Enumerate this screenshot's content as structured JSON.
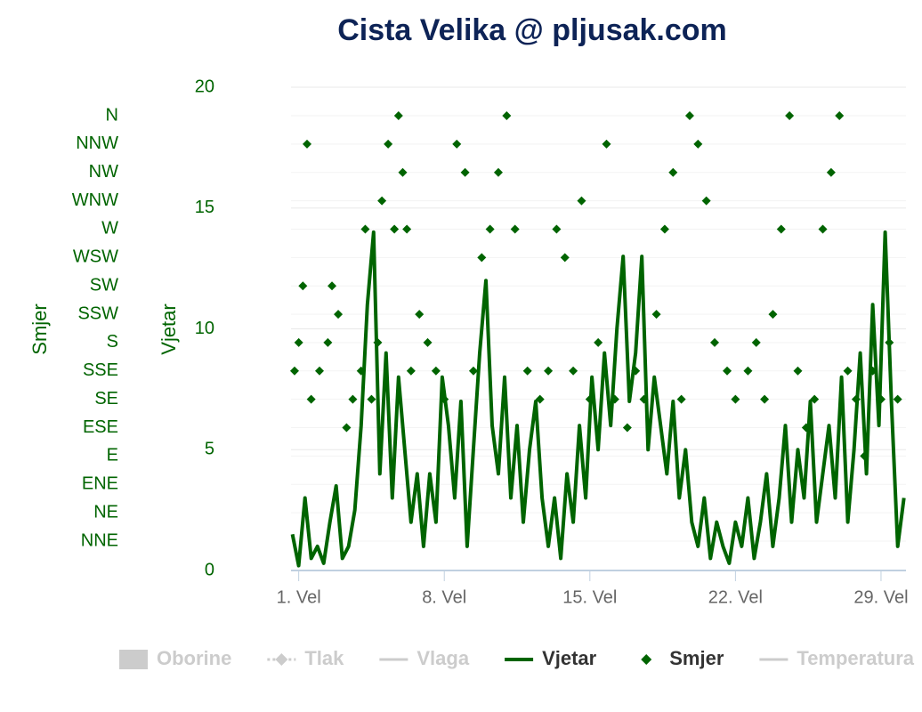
{
  "chart_data": {
    "type": "combo",
    "title": "Cista Velika @ pljusak.com",
    "y_label": "Vjetar",
    "y2_label": "Smjer",
    "xlim": [
      0.63,
      30.2
    ],
    "xticks": [
      {
        "value": 1,
        "label": "1. Vel"
      },
      {
        "value": 8,
        "label": "8. Vel"
      },
      {
        "value": 15,
        "label": "15. Vel"
      },
      {
        "value": 22,
        "label": "22. Vel"
      },
      {
        "value": 29,
        "label": "29. Vel"
      }
    ],
    "ylim": [
      0,
      20
    ],
    "yticks": [
      0,
      5,
      10,
      15,
      20
    ],
    "y2categories": [
      "NNE",
      "NE",
      "ENE",
      "E",
      "ESE",
      "SE",
      "SSE",
      "S",
      "SSW",
      "SW",
      "WSW",
      "W",
      "WNW",
      "NW",
      "NNW",
      "N"
    ],
    "grid": true,
    "series": [
      {
        "name": "Oborine",
        "type": "bar",
        "color": "#cccccc",
        "visible": false
      },
      {
        "name": "Tlak",
        "type": "dashed-line",
        "color": "#cccccc",
        "visible": false
      },
      {
        "name": "Vlaga",
        "type": "line",
        "color": "#cccccc",
        "visible": false
      },
      {
        "name": "Vjetar",
        "type": "line",
        "color": "#006400",
        "visible": true,
        "x": [
          0.7,
          1,
          1.3,
          1.6,
          1.9,
          2.2,
          2.5,
          2.8,
          3.1,
          3.4,
          3.7,
          4,
          4.3,
          4.6,
          4.9,
          5.2,
          5.5,
          5.8,
          6.1,
          6.4,
          6.7,
          7,
          7.3,
          7.6,
          7.9,
          8.2,
          8.5,
          8.8,
          9.1,
          9.4,
          9.7,
          10,
          10.3,
          10.6,
          10.9,
          11.2,
          11.5,
          11.8,
          12.1,
          12.4,
          12.7,
          13,
          13.3,
          13.6,
          13.9,
          14.2,
          14.5,
          14.8,
          15.1,
          15.4,
          15.7,
          16,
          16.3,
          16.6,
          16.9,
          17.2,
          17.5,
          17.8,
          18.1,
          18.4,
          18.7,
          19,
          19.3,
          19.6,
          19.9,
          20.2,
          20.5,
          20.8,
          21.1,
          21.4,
          21.7,
          22,
          22.3,
          22.6,
          22.9,
          23.2,
          23.5,
          23.8,
          24.1,
          24.4,
          24.7,
          25,
          25.3,
          25.6,
          25.9,
          26.2,
          26.5,
          26.8,
          27.1,
          27.4,
          27.7,
          28,
          28.3,
          28.6,
          28.9,
          29.2,
          29.5,
          29.8,
          30.1
        ],
        "values": [
          1.5,
          0.2,
          3,
          0.5,
          1,
          0.3,
          2,
          3.5,
          0.5,
          1,
          2.5,
          6,
          11,
          14,
          4,
          9,
          3,
          8,
          5,
          2,
          4,
          1,
          4,
          2,
          8,
          6,
          3,
          7,
          1,
          5,
          9,
          12,
          6,
          4,
          8,
          3,
          6,
          2,
          5,
          7,
          3,
          1,
          3,
          0.5,
          4,
          2,
          6,
          3,
          8,
          5,
          9,
          6,
          10,
          13,
          7,
          9,
          13,
          5,
          8,
          6,
          4,
          7,
          3,
          5,
          2,
          1,
          3,
          0.5,
          2,
          1,
          0.3,
          2,
          1,
          3,
          0.5,
          2,
          4,
          1,
          3,
          6,
          2,
          5,
          3,
          7,
          2,
          4,
          6,
          3,
          8,
          2,
          5,
          9,
          4,
          11,
          6,
          14,
          7,
          1,
          3
        ]
      },
      {
        "name": "Smjer",
        "type": "scatter",
        "color": "#006400",
        "visible": true,
        "axis": "y2",
        "x": [
          0.8,
          1,
          1.2,
          1.4,
          1.6,
          2,
          2.4,
          2.6,
          2.9,
          3.3,
          3.6,
          4,
          4.2,
          4.5,
          4.8,
          5,
          5.3,
          5.6,
          5.8,
          6,
          6.2,
          6.4,
          6.8,
          7.2,
          7.6,
          8,
          8.6,
          9,
          9.4,
          9.8,
          10.2,
          10.6,
          11,
          11.4,
          12,
          12.6,
          13,
          13.4,
          13.8,
          14.2,
          14.6,
          15,
          15.4,
          15.8,
          16.2,
          16.8,
          17.2,
          17.6,
          18.2,
          18.6,
          19,
          19.4,
          19.8,
          20.2,
          20.6,
          21,
          21.6,
          22,
          22.6,
          23,
          23.4,
          23.8,
          24.2,
          24.6,
          25,
          25.4,
          25.8,
          26.2,
          26.6,
          27,
          27.4,
          27.8,
          28.2,
          28.6,
          29,
          29.4,
          29.8
        ],
        "values": [
          "SSE",
          "S",
          "SW",
          "NNW",
          "SE",
          "SSE",
          "S",
          "SW",
          "SSW",
          "ESE",
          "SE",
          "SSE",
          "W",
          "SE",
          "S",
          "WNW",
          "NNW",
          "W",
          "N",
          "NW",
          "W",
          "SSE",
          "SSW",
          "S",
          "SSE",
          "SE",
          "NNW",
          "NW",
          "SSE",
          "WSW",
          "W",
          "NW",
          "N",
          "W",
          "SSE",
          "SE",
          "SSE",
          "W",
          "WSW",
          "SSE",
          "WNW",
          "SE",
          "S",
          "NNW",
          "SE",
          "ESE",
          "SSE",
          "SE",
          "SSW",
          "W",
          "NW",
          "SE",
          "N",
          "NNW",
          "WNW",
          "S",
          "SSE",
          "SE",
          "SSE",
          "S",
          "SE",
          "SSW",
          "W",
          "N",
          "SSE",
          "ESE",
          "SE",
          "W",
          "NW",
          "N",
          "SSE",
          "SE",
          "E",
          "SSE",
          "SE",
          "S",
          "SE"
        ]
      },
      {
        "name": "Temperatura",
        "type": "line",
        "color": "#cccccc",
        "visible": false
      }
    ]
  }
}
